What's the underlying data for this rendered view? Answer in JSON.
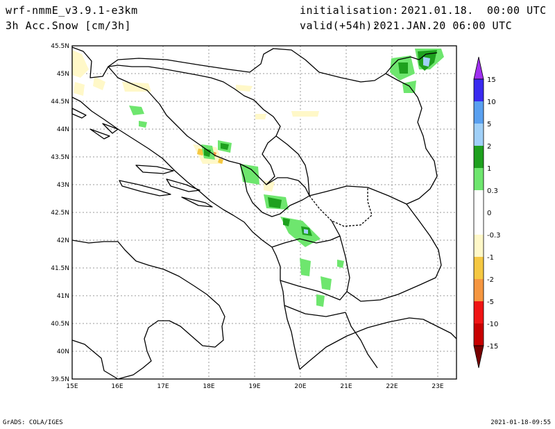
{
  "header": {
    "model": "wrf-nmmE_v3.9.1-e3km",
    "field": "3h Acc.Snow [cm/3h]",
    "init_label": "initialisation:",
    "init_value": "2021.01.18.  00:00 UTC",
    "valid_label": "valid(+54h):",
    "valid_value": "2021.JAN.20 06:00 UTC"
  },
  "map": {
    "lat_labels": [
      "45.5N",
      "45N",
      "44.5N",
      "44N",
      "43.5N",
      "43N",
      "42.5N",
      "42N",
      "41.5N",
      "41N",
      "40.5N",
      "40N",
      "39.5N"
    ],
    "lon_labels": [
      "15E",
      "16E",
      "17E",
      "18E",
      "19E",
      "20E",
      "21E",
      "22E",
      "23E"
    ]
  },
  "colorbar": {
    "labels": [
      "15",
      "10",
      "5",
      "2",
      "1",
      "0.3",
      "0",
      "-0.3",
      "-1",
      "-2",
      "-5",
      "-10",
      "-15"
    ],
    "colors": [
      "#3a2af0",
      "#5aa0f0",
      "#a0d0f8",
      "#1ea01e",
      "#6ee66e",
      "#ffffff",
      "#ffffff",
      "#fff8c8",
      "#f5c842",
      "#f59640",
      "#f01414",
      "#c80000",
      "#8c0000"
    ],
    "top_arrow_color": "#a030f0",
    "bottom_arrow_color": "#780000"
  },
  "footer": {
    "left": "GrADS: COLA/IGES",
    "right": "2021-01-18-09:55"
  }
}
